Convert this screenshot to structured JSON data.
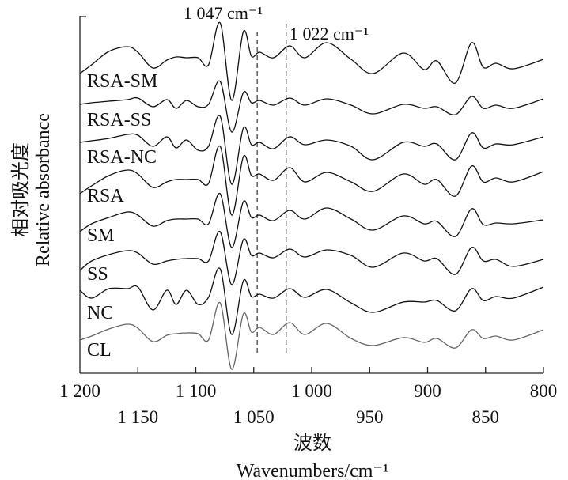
{
  "chart_data": {
    "type": "line",
    "title": "",
    "xlabel_cn": "波数",
    "xlabel": "Wavenumbers/cm⁻¹",
    "ylabel_cn": "相对吸光度",
    "ylabel": "Relative absorbance",
    "xlim": [
      1200,
      800
    ],
    "x_reversed": true,
    "ylim": [
      0,
      4.52
    ],
    "y_ticks_shown": false,
    "grid": false,
    "legend": "inline labels at left of each curve",
    "x_ticks": [
      1200,
      1150,
      1100,
      1050,
      1000,
      950,
      900,
      850,
      800
    ],
    "x_tick_labels_upper": [
      "1 200",
      "1 100",
      "1 000",
      "900",
      "800"
    ],
    "x_tick_labels_lower": [
      "1 150",
      "1 050",
      "950",
      "850"
    ],
    "annotations": [
      {
        "text": "1 047 cm⁻¹",
        "x": 1047,
        "style": "dashed-vertical"
      },
      {
        "text": "1 022 cm⁻¹",
        "x": 1022,
        "style": "dashed-vertical"
      }
    ],
    "x": [
      1200,
      1190,
      1175,
      1159,
      1150,
      1137,
      1125,
      1117,
      1108,
      1098,
      1089,
      1079,
      1069,
      1059,
      1052,
      1045,
      1033,
      1019,
      1006,
      987,
      966,
      947,
      921,
      903,
      892,
      876,
      862,
      852,
      841,
      826,
      800
    ],
    "series": [
      {
        "name": "RSA-SM",
        "color": "#111111",
        "values": [
          3.79,
          3.9,
          4.07,
          4.13,
          4.06,
          3.86,
          3.96,
          4.0,
          3.99,
          3.99,
          3.9,
          4.43,
          3.45,
          4.32,
          4.01,
          4.06,
          3.99,
          4.14,
          3.99,
          4.18,
          3.97,
          3.79,
          4.05,
          3.84,
          3.95,
          3.67,
          4.18,
          3.87,
          3.92,
          3.85,
          3.97
        ]
      },
      {
        "name": "RSA-SS",
        "color": "#111111",
        "values": [
          3.4,
          3.42,
          3.44,
          3.46,
          3.48,
          3.37,
          3.46,
          3.35,
          3.45,
          3.37,
          3.4,
          3.69,
          3.05,
          3.55,
          3.42,
          3.45,
          3.39,
          3.48,
          3.39,
          3.47,
          3.39,
          3.28,
          3.4,
          3.35,
          3.37,
          3.27,
          3.5,
          3.35,
          3.39,
          3.35,
          3.47
        ]
      },
      {
        "name": "RSA-NC",
        "color": "#111111",
        "values": [
          2.92,
          2.94,
          2.97,
          3.02,
          3.01,
          2.87,
          2.99,
          2.85,
          2.95,
          2.82,
          2.87,
          3.25,
          2.39,
          3.1,
          2.89,
          2.92,
          2.84,
          2.99,
          2.89,
          2.95,
          2.87,
          2.7,
          2.92,
          2.87,
          2.9,
          2.7,
          3.04,
          2.85,
          2.9,
          2.89,
          2.99
        ]
      },
      {
        "name": "RSA",
        "color": "#111111",
        "values": [
          2.27,
          2.37,
          2.5,
          2.57,
          2.52,
          2.35,
          2.42,
          2.45,
          2.45,
          2.45,
          2.4,
          2.87,
          2.0,
          2.74,
          2.5,
          2.52,
          2.44,
          2.6,
          2.42,
          2.54,
          2.42,
          2.3,
          2.52,
          2.39,
          2.45,
          2.24,
          2.62,
          2.42,
          2.47,
          2.42,
          2.55
        ]
      },
      {
        "name": "SM",
        "color": "#111111",
        "values": [
          1.79,
          1.89,
          1.97,
          2.04,
          2.0,
          1.86,
          1.93,
          1.95,
          1.95,
          1.95,
          1.89,
          2.27,
          1.59,
          2.17,
          1.97,
          2.0,
          1.93,
          2.06,
          1.95,
          2.09,
          1.95,
          1.81,
          1.99,
          1.89,
          1.92,
          1.73,
          2.08,
          1.88,
          1.9,
          1.89,
          1.94
        ]
      },
      {
        "name": "SS",
        "color": "#111111",
        "values": [
          1.3,
          1.42,
          1.5,
          1.55,
          1.52,
          1.38,
          1.42,
          1.44,
          1.45,
          1.45,
          1.42,
          1.79,
          1.12,
          1.69,
          1.49,
          1.52,
          1.46,
          1.57,
          1.47,
          1.56,
          1.49,
          1.34,
          1.52,
          1.42,
          1.45,
          1.25,
          1.59,
          1.42,
          1.44,
          1.35,
          1.44
        ]
      },
      {
        "name": "NC",
        "color": "#111111",
        "values": [
          1.05,
          0.95,
          1.07,
          1.07,
          1.09,
          0.8,
          1.05,
          0.87,
          1.05,
          0.87,
          0.96,
          1.32,
          0.49,
          1.17,
          0.97,
          1.0,
          0.95,
          1.07,
          0.96,
          1.06,
          0.89,
          0.77,
          0.9,
          0.9,
          0.92,
          0.79,
          1.07,
          0.92,
          0.97,
          0.95,
          1.09
        ]
      },
      {
        "name": "CL",
        "color": "#666666",
        "values": [
          0.42,
          0.47,
          0.56,
          0.62,
          0.57,
          0.4,
          0.48,
          0.5,
          0.51,
          0.5,
          0.42,
          0.89,
          0.05,
          0.75,
          0.52,
          0.58,
          0.49,
          0.64,
          0.49,
          0.63,
          0.44,
          0.35,
          0.45,
          0.39,
          0.44,
          0.32,
          0.55,
          0.44,
          0.47,
          0.42,
          0.55
        ]
      }
    ]
  }
}
